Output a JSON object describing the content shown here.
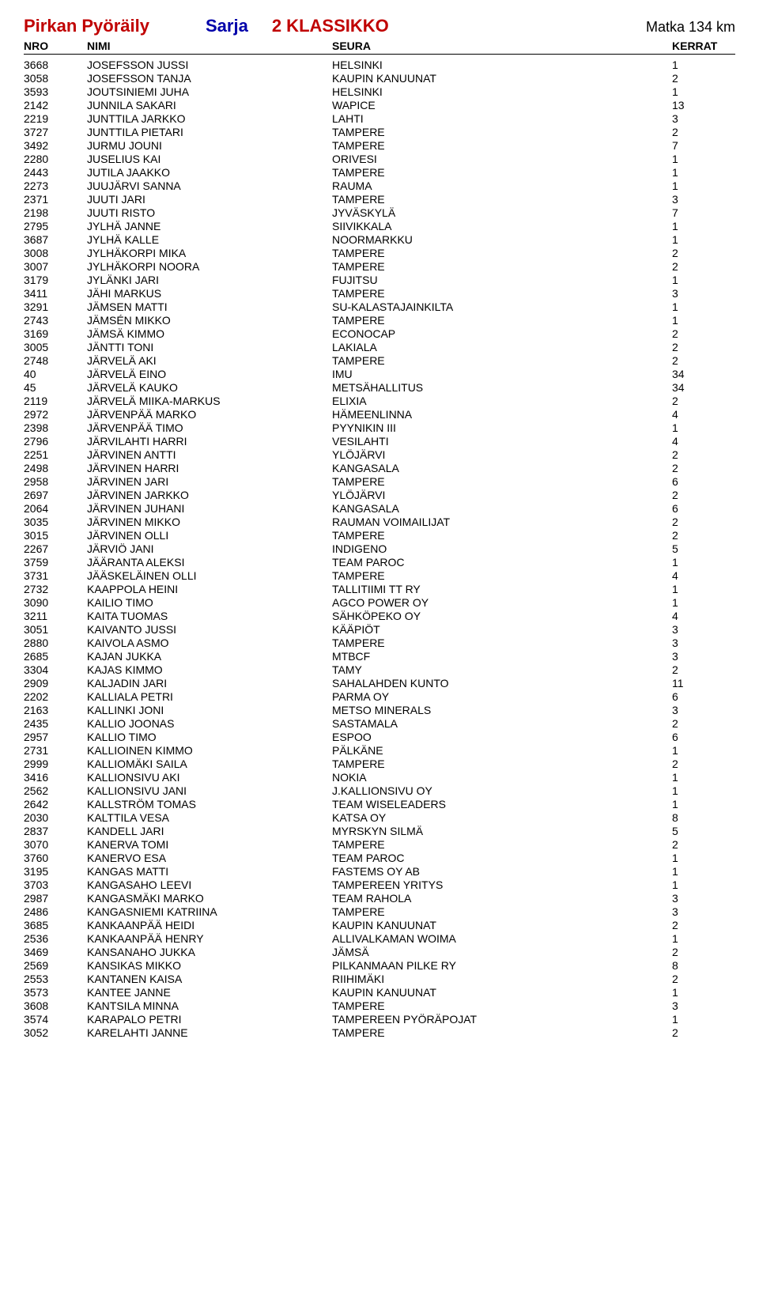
{
  "header": {
    "title": "Pirkan Pyöräily",
    "sarja_label": "Sarja",
    "category": "2  KLASSIKKO",
    "distance": "Matka 134 km"
  },
  "columns": {
    "nro": "NRO",
    "nimi": "NIMI",
    "seura": "SEURA",
    "kerrat": "KERRAT"
  },
  "rows": [
    [
      "3668",
      "JOSEFSSON JUSSI",
      "HELSINKI",
      "1"
    ],
    [
      "3058",
      "JOSEFSSON TANJA",
      "KAUPIN KANUUNAT",
      "2"
    ],
    [
      "3593",
      "JOUTSINIEMI JUHA",
      "HELSINKI",
      "1"
    ],
    [
      "2142",
      "JUNNILA SAKARI",
      "WAPICE",
      "13"
    ],
    [
      "2219",
      "JUNTTILA JARKKO",
      "LAHTI",
      "3"
    ],
    [
      "3727",
      "JUNTTILA PIETARI",
      "TAMPERE",
      "2"
    ],
    [
      "3492",
      "JURMU JOUNI",
      "TAMPERE",
      "7"
    ],
    [
      "2280",
      "JUSELIUS KAI",
      "ORIVESI",
      "1"
    ],
    [
      "2443",
      "JUTILA JAAKKO",
      "TAMPERE",
      "1"
    ],
    [
      "2273",
      "JUUJÄRVI SANNA",
      "RAUMA",
      "1"
    ],
    [
      "2371",
      "JUUTI JARI",
      "TAMPERE",
      "3"
    ],
    [
      "2198",
      "JUUTI RISTO",
      "JYVÄSKYLÄ",
      "7"
    ],
    [
      "2795",
      "JYLHÄ JANNE",
      "SIIVIKKALA",
      "1"
    ],
    [
      "3687",
      "JYLHÄ KALLE",
      "NOORMARKKU",
      "1"
    ],
    [
      "3008",
      "JYLHÄKORPI MIKA",
      "TAMPERE",
      "2"
    ],
    [
      "3007",
      "JYLHÄKORPI NOORA",
      "TAMPERE",
      "2"
    ],
    [
      "3179",
      "JYLÄNKI JARI",
      "FUJITSU",
      "1"
    ],
    [
      "3411",
      "JÄHI MARKUS",
      "TAMPERE",
      "3"
    ],
    [
      "3291",
      "JÄMSEN MATTI",
      "SU-KALASTAJAINKILTA",
      "1"
    ],
    [
      "2743",
      "JÄMSÉN MIKKO",
      "TAMPERE",
      "1"
    ],
    [
      "3169",
      "JÄMSÄ KIMMO",
      "ECONOCAP",
      "2"
    ],
    [
      "3005",
      "JÄNTTI TONI",
      "LAKIALA",
      "2"
    ],
    [
      "2748",
      "JÄRVELÄ AKI",
      "TAMPERE",
      "2"
    ],
    [
      "40",
      "JÄRVELÄ EINO",
      "IMU",
      "34"
    ],
    [
      "45",
      "JÄRVELÄ KAUKO",
      "METSÄHALLITUS",
      "34"
    ],
    [
      "2119",
      "JÄRVELÄ MIIKA-MARKUS",
      "ELIXIA",
      "2"
    ],
    [
      "2972",
      "JÄRVENPÄÄ MARKO",
      "HÄMEENLINNA",
      "4"
    ],
    [
      "2398",
      "JÄRVENPÄÄ TIMO",
      "PYYNIKIN III",
      "1"
    ],
    [
      "2796",
      "JÄRVILAHTI HARRI",
      "VESILAHTI",
      "4"
    ],
    [
      "2251",
      "JÄRVINEN ANTTI",
      "YLÖJÄRVI",
      "2"
    ],
    [
      "2498",
      "JÄRVINEN HARRI",
      "KANGASALA",
      "2"
    ],
    [
      "2958",
      "JÄRVINEN JARI",
      "TAMPERE",
      "6"
    ],
    [
      "2697",
      "JÄRVINEN JARKKO",
      "YLÖJÄRVI",
      "2"
    ],
    [
      "2064",
      "JÄRVINEN JUHANI",
      "KANGASALA",
      "6"
    ],
    [
      "3035",
      "JÄRVINEN MIKKO",
      "RAUMAN VOIMAILIJAT",
      "2"
    ],
    [
      "3015",
      "JÄRVINEN OLLI",
      "TAMPERE",
      "2"
    ],
    [
      "2267",
      "JÄRVIÖ JANI",
      "INDIGENO",
      "5"
    ],
    [
      "3759",
      "JÄÄRANTA ALEKSI",
      "TEAM PAROC",
      "1"
    ],
    [
      "3731",
      "JÄÄSKELÄINEN OLLI",
      "TAMPERE",
      "4"
    ],
    [
      "2732",
      "KAAPPOLA HEINI",
      "TALLITIIMI TT RY",
      "1"
    ],
    [
      "3090",
      "KAILIO TIMO",
      "AGCO POWER OY",
      "1"
    ],
    [
      "3211",
      "KAITA TUOMAS",
      "SÄHKÖPEKO OY",
      "4"
    ],
    [
      "3051",
      "KAIVANTO JUSSI",
      "KÄÄPIÖT",
      "3"
    ],
    [
      "2880",
      "KAIVOLA ASMO",
      "TAMPERE",
      "3"
    ],
    [
      "2685",
      "KAJAN JUKKA",
      "MTBCF",
      "3"
    ],
    [
      "3304",
      "KAJAS KIMMO",
      "TAMY",
      "2"
    ],
    [
      "2909",
      "KALJADIN JARI",
      "SAHALAHDEN KUNTO",
      "11"
    ],
    [
      "2202",
      "KALLIALA PETRI",
      "PARMA OY",
      "6"
    ],
    [
      "2163",
      "KALLINKI JONI",
      "METSO MINERALS",
      "3"
    ],
    [
      "2435",
      "KALLIO JOONAS",
      "SASTAMALA",
      "2"
    ],
    [
      "2957",
      "KALLIO TIMO",
      "ESPOO",
      "6"
    ],
    [
      "2731",
      "KALLIOINEN KIMMO",
      "PÄLKÄNE",
      "1"
    ],
    [
      "2999",
      "KALLIOMÄKI SAILA",
      "TAMPERE",
      "2"
    ],
    [
      "3416",
      "KALLIONSIVU AKI",
      "NOKIA",
      "1"
    ],
    [
      "2562",
      "KALLIONSIVU JANI",
      "J.KALLIONSIVU OY",
      "1"
    ],
    [
      "2642",
      "KALLSTRÖM TOMAS",
      "TEAM WISELEADERS",
      "1"
    ],
    [
      "2030",
      "KALTTILA VESA",
      "KATSA OY",
      "8"
    ],
    [
      "2837",
      "KANDELL JARI",
      "MYRSKYN SILMÄ",
      "5"
    ],
    [
      "3070",
      "KANERVA TOMI",
      "TAMPERE",
      "2"
    ],
    [
      "3760",
      "KANERVO ESA",
      "TEAM PAROC",
      "1"
    ],
    [
      "3195",
      "KANGAS MATTI",
      "FASTEMS OY AB",
      "1"
    ],
    [
      "3703",
      "KANGASAHO LEEVI",
      "TAMPEREEN YRITYS",
      "1"
    ],
    [
      "2987",
      "KANGASMÄKI MARKO",
      "TEAM RAHOLA",
      "3"
    ],
    [
      "2486",
      "KANGASNIEMI KATRIINA",
      "TAMPERE",
      "3"
    ],
    [
      "3685",
      "KANKAANPÄÄ HEIDI",
      "KAUPIN KANUUNAT",
      "2"
    ],
    [
      "2536",
      "KANKAANPÄÄ HENRY",
      "ALLIVALKAMAN WOIMA",
      "1"
    ],
    [
      "3469",
      "KANSANAHO JUKKA",
      "JÄMSÄ",
      "2"
    ],
    [
      "2569",
      "KANSIKAS MIKKO",
      "PILKANMAAN PILKE RY",
      "8"
    ],
    [
      "2553",
      "KANTANEN KAISA",
      "RIIHIMÄKI",
      "2"
    ],
    [
      "3573",
      "KANTEE JANNE",
      "KAUPIN KANUUNAT",
      "1"
    ],
    [
      "3608",
      "KANTSILA MINNA",
      "TAMPERE",
      "3"
    ],
    [
      "3574",
      "KARAPALO PETRI",
      "TAMPEREEN PYÖRÄPOJAT",
      "1"
    ],
    [
      "3052",
      "KARELAHTI JANNE",
      "TAMPERE",
      "2"
    ]
  ]
}
